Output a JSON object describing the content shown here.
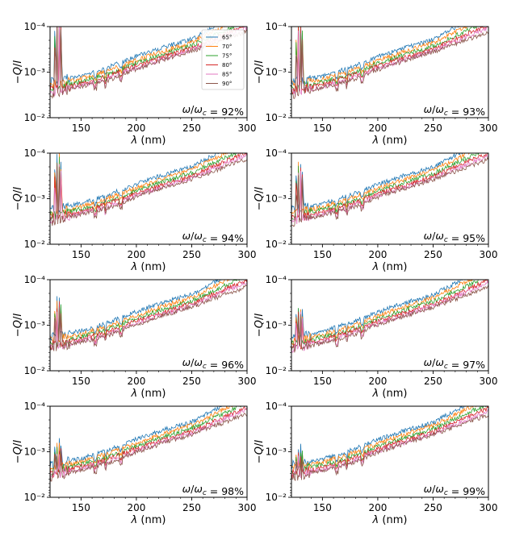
{
  "chart_data": {
    "type": "line",
    "xlabel": "λ (nm)",
    "ylabel": "−Q/I",
    "xlim": [
      122,
      300
    ],
    "ylim": [
      0.01,
      0.0001
    ],
    "y_axis_scale": "log (inverted, top = 1e-4, bottom = 1e-2)",
    "xticks": [
      150,
      200,
      250,
      300
    ],
    "xtick_labels": [
      "150",
      "200",
      "250",
      "300"
    ],
    "yticks": [
      0.0001,
      0.001,
      0.01
    ],
    "ytick_labels": [
      "10⁻⁴",
      "10⁻³",
      "10⁻²"
    ],
    "legend_location": "top-right of first panel",
    "series_colors": {
      "65°": "#1f77b4",
      "70°": "#ff7f0e",
      "75°": "#2ca02c",
      "80°": "#d62728",
      "85°": "#e377c2",
      "90°": "#8c564b"
    },
    "series": [
      {
        "name": "65°",
        "values": [
          [
            125,
            0.0016
          ],
          [
            150,
            0.0012
          ],
          [
            175,
            0.00078
          ],
          [
            200,
            0.00045
          ],
          [
            225,
            0.00028
          ],
          [
            250,
            0.00019
          ],
          [
            265,
            0.00012
          ]
        ]
      },
      {
        "name": "70°",
        "values": [
          [
            125,
            0.0019
          ],
          [
            150,
            0.0014
          ],
          [
            175,
            0.00092
          ],
          [
            200,
            0.00055
          ],
          [
            225,
            0.00034
          ],
          [
            250,
            0.00022
          ],
          [
            275,
            0.00011
          ]
        ]
      },
      {
        "name": "75°",
        "values": [
          [
            125,
            0.0022
          ],
          [
            150,
            0.0016
          ],
          [
            175,
            0.0011
          ],
          [
            200,
            0.00063
          ],
          [
            225,
            0.0004
          ],
          [
            250,
            0.00026
          ],
          [
            280,
            0.00012
          ]
        ]
      },
      {
        "name": "80°",
        "values": [
          [
            125,
            0.0025
          ],
          [
            150,
            0.0018
          ],
          [
            175,
            0.0012
          ],
          [
            200,
            0.00072
          ],
          [
            225,
            0.00046
          ],
          [
            250,
            0.0003
          ],
          [
            285,
            0.00013
          ]
        ]
      },
      {
        "name": "85°",
        "values": [
          [
            125,
            0.0028
          ],
          [
            150,
            0.002
          ],
          [
            175,
            0.0014
          ],
          [
            200,
            0.0008
          ],
          [
            225,
            0.00051
          ],
          [
            250,
            0.00033
          ],
          [
            290,
            0.00013
          ]
        ]
      },
      {
        "name": "90°",
        "values": [
          [
            125,
            0.003
          ],
          [
            150,
            0.0021
          ],
          [
            175,
            0.0015
          ],
          [
            200,
            0.00085
          ],
          [
            225,
            0.00054
          ],
          [
            250,
            0.00035
          ],
          [
            295,
            0.00014
          ]
        ]
      }
    ],
    "panels": [
      {
        "annotation": "ω/ω_c = 92%",
        "ratio": 92,
        "legend": true
      },
      {
        "annotation": "ω/ω_c = 93%",
        "ratio": 93,
        "legend": false
      },
      {
        "annotation": "ω/ω_c = 94%",
        "ratio": 94,
        "legend": false
      },
      {
        "annotation": "ω/ω_c = 95%",
        "ratio": 95,
        "legend": false
      },
      {
        "annotation": "ω/ω_c = 96%",
        "ratio": 96,
        "legend": false
      },
      {
        "annotation": "ω/ω_c = 97%",
        "ratio": 97,
        "legend": false
      },
      {
        "annotation": "ω/ω_c = 98%",
        "ratio": 98,
        "legend": false
      },
      {
        "annotation": "ω/ω_c = 99%",
        "ratio": 99,
        "legend": false
      }
    ],
    "legend_entries": [
      "65°",
      "70°",
      "75°",
      "80°",
      "85°",
      "90°"
    ]
  }
}
